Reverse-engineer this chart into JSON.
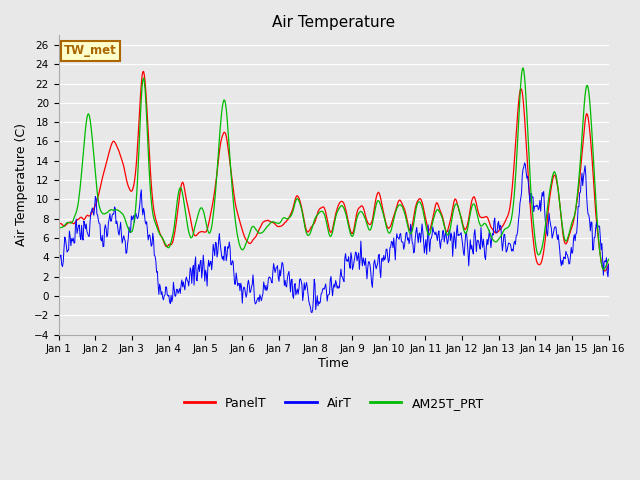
{
  "title": "Air Temperature",
  "xlabel": "Time",
  "ylabel": "Air Temperature (C)",
  "ylim": [
    -4,
    27
  ],
  "yticks": [
    -4,
    -2,
    0,
    2,
    4,
    6,
    8,
    10,
    12,
    14,
    16,
    18,
    20,
    22,
    24,
    26
  ],
  "bg_color": "#e8e8e8",
  "plot_bg_color": "#e8e8e8",
  "legend_labels": [
    "PanelT",
    "AirT",
    "AM25T_PRT"
  ],
  "legend_colors": [
    "#ff0000",
    "#0000ff",
    "#00bb00"
  ],
  "label_box_text": "TW_met",
  "label_box_bg": "#ffffcc",
  "label_box_border": "#aa6600",
  "n_points": 720,
  "days": 15,
  "figsize": [
    6.4,
    4.8
  ],
  "dpi": 100
}
